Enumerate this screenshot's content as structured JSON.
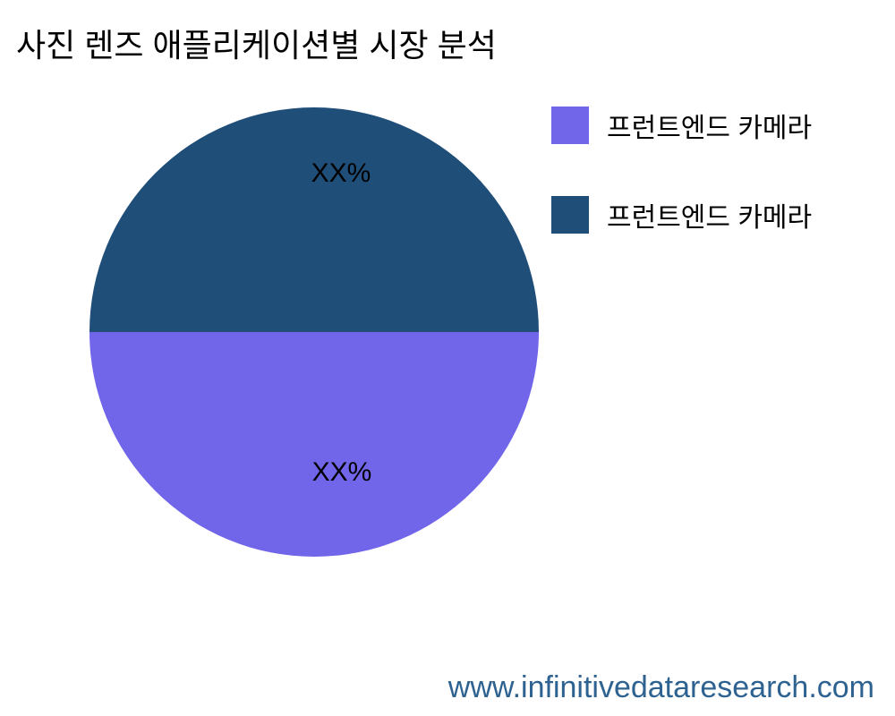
{
  "title": {
    "text": "사진 렌즈 애플리케이션별 시장 분석"
  },
  "chart_data": {
    "type": "pie",
    "title": "사진 렌즈 애플리케이션별 시장 분석",
    "slices": [
      {
        "label": "프런트엔드 카메라",
        "value": 50,
        "color": "#7165E9",
        "data_label": "XX%"
      },
      {
        "label": "프런트엔드 카메라",
        "value": 50,
        "color": "#1F4E79",
        "data_label": "XX%"
      }
    ],
    "start_angle_deg": 0,
    "direction": "clockwise",
    "legend_position": "right",
    "data_label_color": "#000000",
    "background": "#ffffff"
  },
  "footer": {
    "url": "www.infinitivedataresearch.com",
    "color": "#2E6291"
  }
}
